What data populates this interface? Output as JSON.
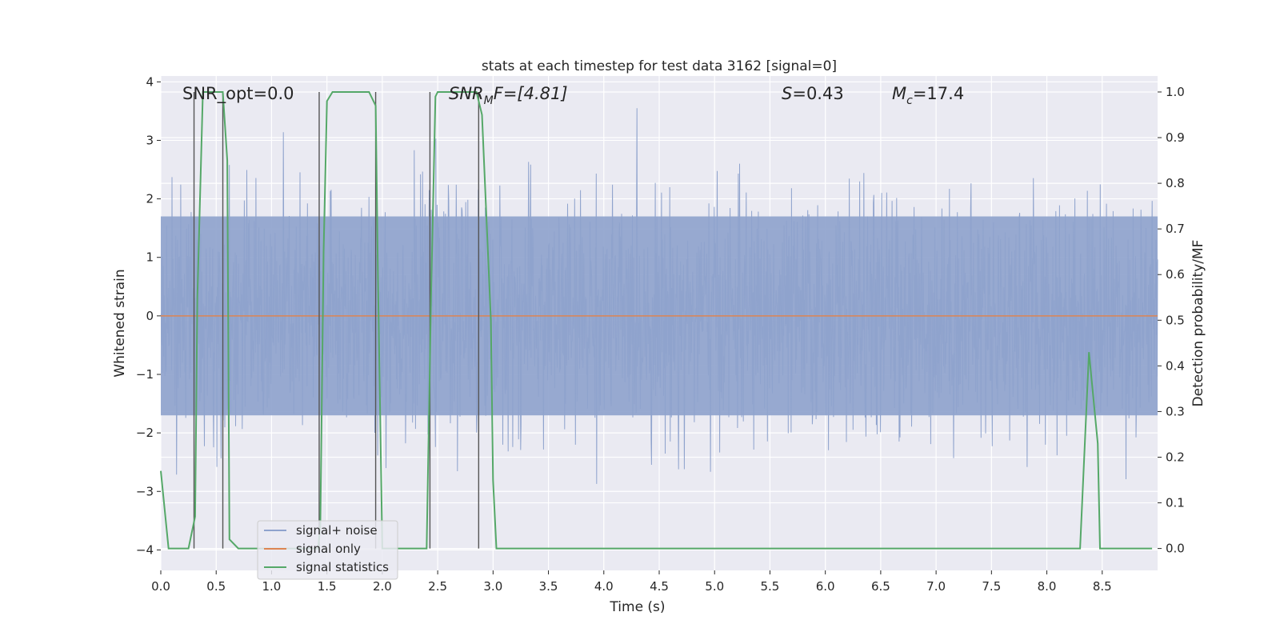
{
  "chart_data": {
    "type": "line",
    "title": "stats at each timestep for test data 3162 [signal=0]",
    "xlabel": "Time (s)",
    "ylabel": "Whitened strain",
    "y2label": "Detection probability/MF",
    "xlim": [
      0.0,
      9.0
    ],
    "ylim": [
      -4.35,
      4.1
    ],
    "y2lim": [
      -0.048,
      1.035
    ],
    "grid": true,
    "legend_position": "lower-left",
    "x_ticks": [
      "0.0",
      "0.5",
      "1.0",
      "1.5",
      "2.0",
      "2.5",
      "3.0",
      "3.5",
      "4.0",
      "4.5",
      "5.0",
      "5.5",
      "6.0",
      "6.5",
      "7.0",
      "7.5",
      "8.0",
      "8.5"
    ],
    "y_ticks": [
      "−4",
      "−3",
      "−2",
      "−1",
      "0",
      "1",
      "2",
      "3",
      "4"
    ],
    "y2_ticks": [
      "0.0",
      "0.1",
      "0.2",
      "0.3",
      "0.4",
      "0.5",
      "0.6",
      "0.7",
      "0.8",
      "0.9",
      "1.0"
    ],
    "annotations": {
      "snr_opt": "SNR_opt=0.0",
      "snr_mf_main": "SNR",
      "snr_mf_sub": "M",
      "snr_mf_rest": "F=[4.81]",
      "s_italic": "S",
      "s_rest": "=0.43",
      "mc_main": "M",
      "mc_sub": "c",
      "mc_rest": "=17.4"
    },
    "series": [
      {
        "name": "signal+ noise",
        "color": "#8fa3cd",
        "description_values": "noise envelope approx ±1.7 core, peaks to ±3.5"
      },
      {
        "name": "signal only",
        "color": "#dd8452",
        "values_constant": 0
      },
      {
        "name": "signal statistics",
        "color": "#55a868",
        "axis": "right",
        "x": [
          0.0,
          0.07,
          0.25,
          0.31,
          0.33,
          0.38,
          0.41,
          0.56,
          0.6,
          0.62,
          0.7,
          1.42,
          1.44,
          1.47,
          1.5,
          1.55,
          1.63,
          1.88,
          1.94,
          1.96,
          2.0,
          2.37,
          2.4,
          2.44,
          2.48,
          2.5,
          2.85,
          2.9,
          2.98,
          3.0,
          3.03,
          3.1,
          8.3,
          8.38,
          8.46,
          8.48,
          8.95
        ],
        "y": [
          0.17,
          0.0,
          0.0,
          0.07,
          0.55,
          1.0,
          1.0,
          1.0,
          0.85,
          0.02,
          0.0,
          0.0,
          0.05,
          0.65,
          0.98,
          1.0,
          1.0,
          1.0,
          0.97,
          0.6,
          0.0,
          0.0,
          0.0,
          0.55,
          0.99,
          1.0,
          1.0,
          0.95,
          0.5,
          0.15,
          0.0,
          0.0,
          0.0,
          0.43,
          0.23,
          0.0,
          0.0
        ]
      }
    ],
    "vertical_lines_x": [
      0.3,
      0.56,
      1.43,
      1.94,
      2.43,
      2.87
    ]
  },
  "legend": {
    "items": [
      {
        "label": "signal+ noise",
        "color": "#8fa3cd"
      },
      {
        "label": "signal only",
        "color": "#dd8452"
      },
      {
        "label": "signal statistics",
        "color": "#55a868"
      }
    ]
  }
}
